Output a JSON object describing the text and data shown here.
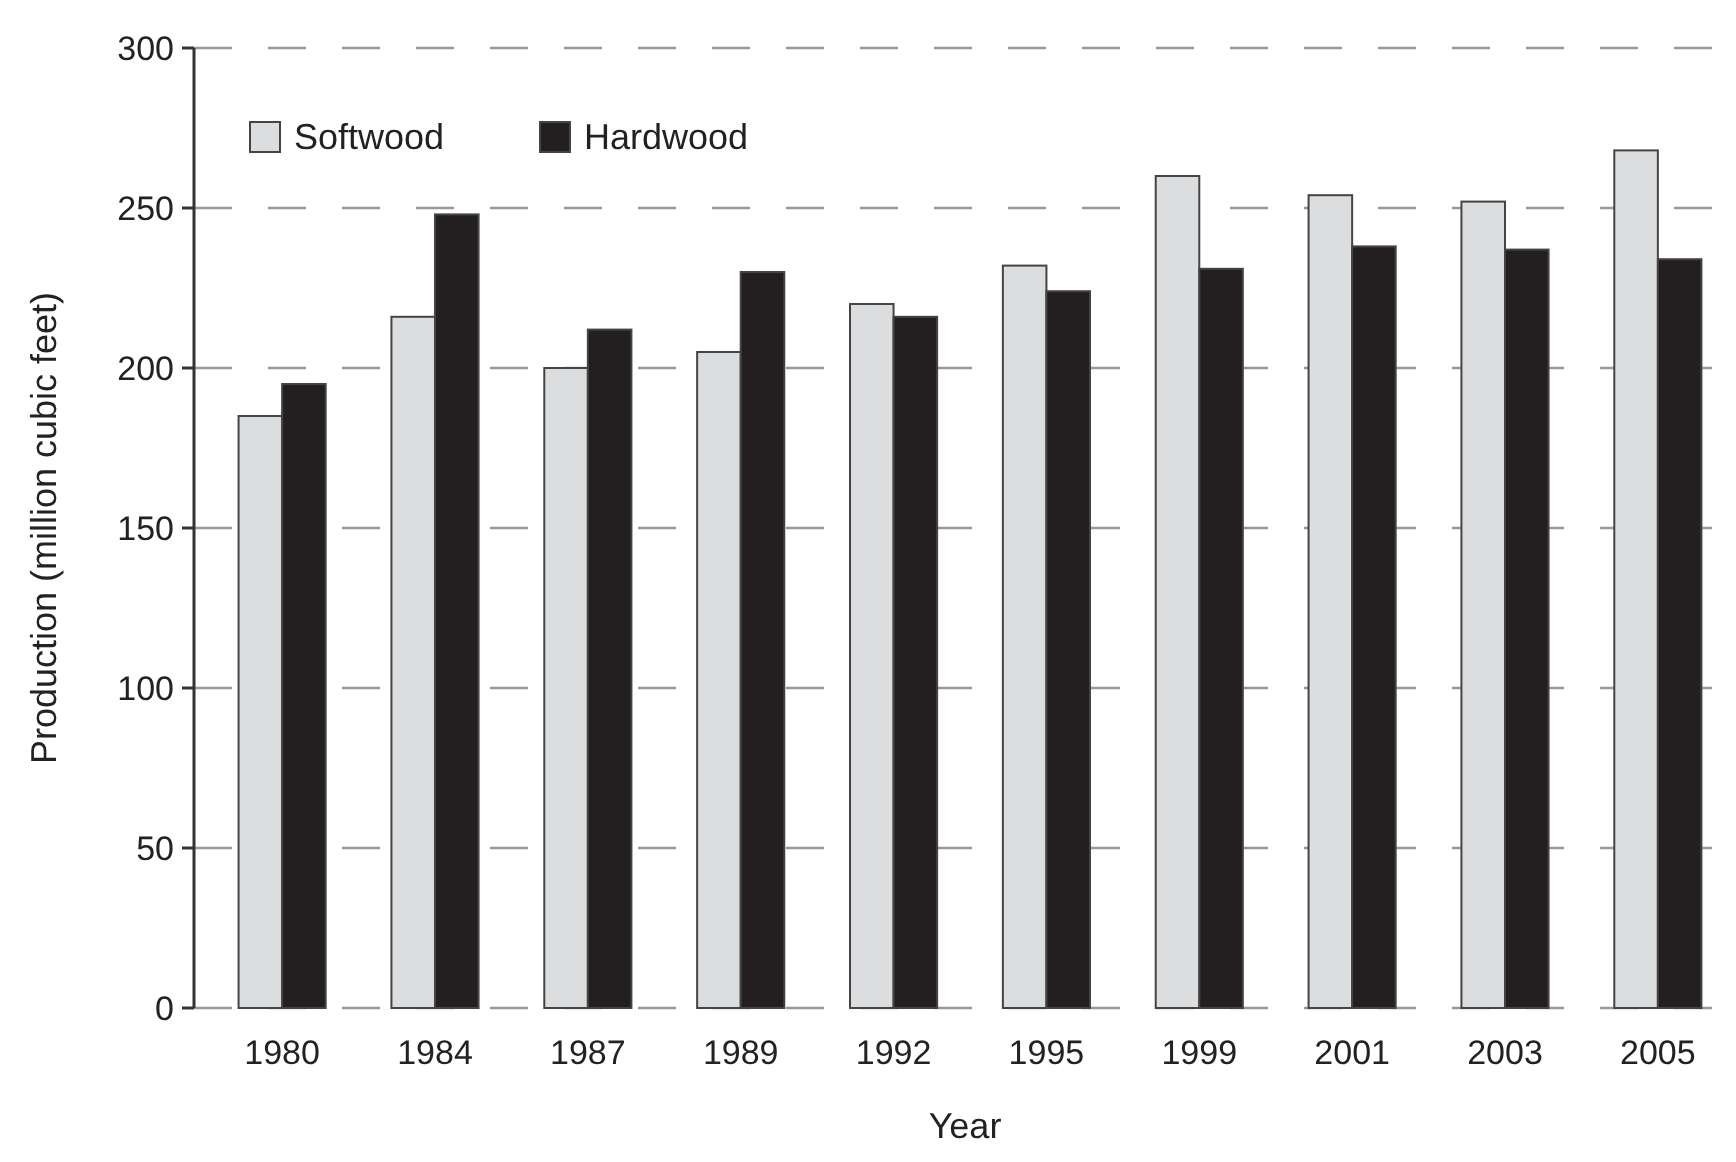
{
  "chart_data": {
    "type": "bar",
    "xlabel": "Year",
    "ylabel": "Production (million cubic feet)",
    "categories": [
      "1980",
      "1984",
      "1987",
      "1989",
      "1992",
      "1995",
      "1999",
      "2001",
      "2003",
      "2005"
    ],
    "series": [
      {
        "name": "Softwood",
        "color": "#dcdddf",
        "values": [
          185,
          216,
          200,
          205,
          220,
          232,
          260,
          254,
          252,
          268
        ]
      },
      {
        "name": "Hardwood",
        "color": "#231f20",
        "values": [
          195,
          248,
          212,
          230,
          216,
          224,
          231,
          238,
          237,
          234
        ]
      }
    ],
    "ylim": [
      0,
      300
    ],
    "yticks": [
      0,
      50,
      100,
      150,
      200,
      250,
      300
    ],
    "grid": "y",
    "legend": "top left"
  }
}
